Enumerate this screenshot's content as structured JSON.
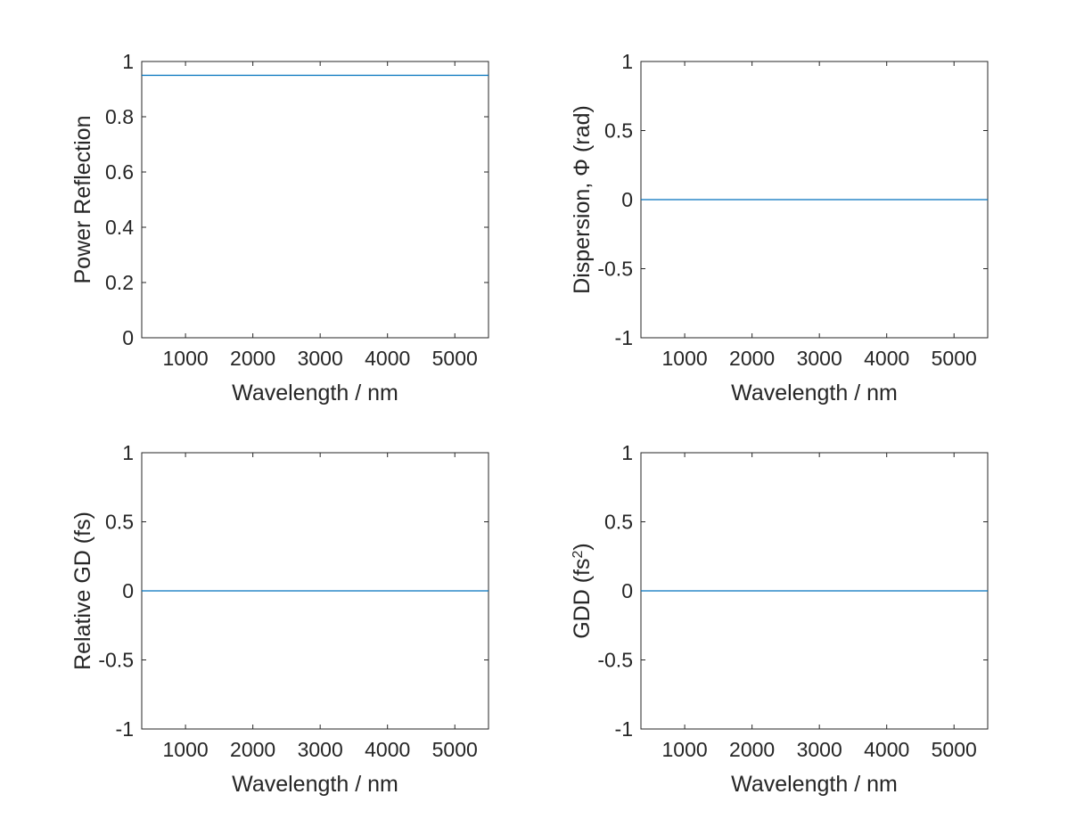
{
  "chart_data": [
    {
      "type": "line",
      "title": "",
      "xlabel": "Wavelength / nm",
      "ylabel": "Power Reflection",
      "ylabel_sup": "",
      "ylabel_suffix": "",
      "xlim": [
        350,
        5500
      ],
      "ylim": [
        0,
        1
      ],
      "xticks": [
        1000,
        2000,
        3000,
        4000,
        5000
      ],
      "yticks": [
        0,
        0.2,
        0.4,
        0.6,
        0.8,
        1
      ],
      "ytick_labels": [
        "0",
        "0.2",
        "0.4",
        "0.6",
        "0.8",
        "1"
      ],
      "xtick_labels": [
        "1000",
        "2000",
        "3000",
        "4000",
        "5000"
      ],
      "grid": false,
      "series": [
        {
          "x": [
            350,
            5500
          ],
          "y": [
            0.95,
            0.95
          ],
          "color": "#0072BD"
        }
      ]
    },
    {
      "type": "line",
      "title": "",
      "xlabel": "Wavelength / nm",
      "ylabel": "Dispersion,  Φ  (rad)",
      "ylabel_sup": "",
      "ylabel_suffix": "",
      "xlim": [
        350,
        5500
      ],
      "ylim": [
        -1,
        1
      ],
      "xticks": [
        1000,
        2000,
        3000,
        4000,
        5000
      ],
      "yticks": [
        -1,
        -0.5,
        0,
        0.5,
        1
      ],
      "ytick_labels": [
        "-1",
        "-0.5",
        "0",
        "0.5",
        "1"
      ],
      "xtick_labels": [
        "1000",
        "2000",
        "3000",
        "4000",
        "5000"
      ],
      "grid": false,
      "series": [
        {
          "x": [
            350,
            5500
          ],
          "y": [
            0,
            0
          ],
          "color": "#0072BD"
        }
      ]
    },
    {
      "type": "line",
      "title": "",
      "xlabel": "Wavelength / nm",
      "ylabel": "Relative GD (fs)",
      "ylabel_sup": "",
      "ylabel_suffix": "",
      "xlim": [
        350,
        5500
      ],
      "ylim": [
        -1,
        1
      ],
      "xticks": [
        1000,
        2000,
        3000,
        4000,
        5000
      ],
      "yticks": [
        -1,
        -0.5,
        0,
        0.5,
        1
      ],
      "ytick_labels": [
        "-1",
        "-0.5",
        "0",
        "0.5",
        "1"
      ],
      "xtick_labels": [
        "1000",
        "2000",
        "3000",
        "4000",
        "5000"
      ],
      "grid": false,
      "series": [
        {
          "x": [
            350,
            5500
          ],
          "y": [
            0,
            0
          ],
          "color": "#0072BD"
        }
      ]
    },
    {
      "type": "line",
      "title": "",
      "xlabel": "Wavelength / nm",
      "ylabel": "GDD  (fs",
      "ylabel_sup": "2",
      "ylabel_suffix": ")",
      "xlim": [
        350,
        5500
      ],
      "ylim": [
        -1,
        1
      ],
      "xticks": [
        1000,
        2000,
        3000,
        4000,
        5000
      ],
      "yticks": [
        -1,
        -0.5,
        0,
        0.5,
        1
      ],
      "ytick_labels": [
        "-1",
        "-0.5",
        "0",
        "0.5",
        "1"
      ],
      "xtick_labels": [
        "1000",
        "2000",
        "3000",
        "4000",
        "5000"
      ],
      "grid": false,
      "series": [
        {
          "x": [
            350,
            5500
          ],
          "y": [
            0,
            0
          ],
          "color": "#0072BD"
        }
      ]
    }
  ]
}
